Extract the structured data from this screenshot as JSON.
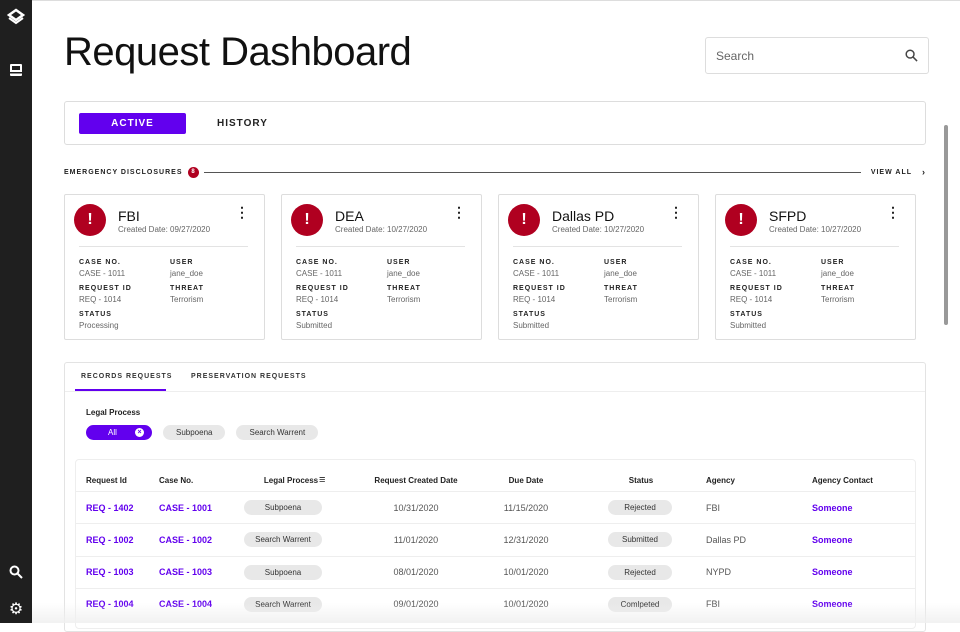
{
  "page": {
    "title": "Request Dashboard",
    "accent": "#6200ee",
    "alert_color": "#b00020"
  },
  "search": {
    "placeholder": "Search"
  },
  "tabs": {
    "active": "ACTIVE",
    "history": "HISTORY"
  },
  "emergency": {
    "label": "EMERGENCY DISCLOSURES",
    "count": "8",
    "view_all": "VIEW ALL"
  },
  "cards": [
    {
      "name": "FBI",
      "date": "Created Date: 09/27/2020",
      "case": "CASE - 1011",
      "user": "jane_doe",
      "req": "REQ -  1014",
      "threat": "Terrorism",
      "status": "Processing"
    },
    {
      "name": "DEA",
      "date": "Created Date: 10/27/2020",
      "case": "CASE - 1011",
      "user": "jane_doe",
      "req": "REQ -  1014",
      "threat": "Terrorism",
      "status": "Submitted"
    },
    {
      "name": "Dallas PD",
      "date": "Created Date: 10/27/2020",
      "case": "CASE - 1011",
      "user": "jane_doe",
      "req": "REQ -  1014",
      "threat": "Terrorism",
      "status": "Submitted"
    },
    {
      "name": "SFPD",
      "date": "Created Date: 10/27/2020",
      "case": "CASE - 1011",
      "user": "jane_doe",
      "req": "REQ -  1014",
      "threat": "Terrorism",
      "status": "Submitted"
    }
  ],
  "card_labels": {
    "case": "CASE NO.",
    "user": "USER",
    "req": "REQUEST ID",
    "threat": "THREAT",
    "status": "STATUS"
  },
  "subtabs": {
    "records": "RECORDS REQUESTS",
    "preservation": "PRESERVATION REQUESTS"
  },
  "filter": {
    "label": "Legal Process",
    "chips": [
      "All",
      "Subpoena",
      "Search Warrent"
    ]
  },
  "table": {
    "headers": [
      "Request Id",
      "Case No.",
      "Legal Process",
      "Request Created Date",
      "Due Date",
      "Status",
      "Agency",
      "Agency Contact"
    ],
    "rows": [
      [
        "REQ - 1402",
        "CASE - 1001",
        "Subpoena",
        "10/31/2020",
        "11/15/2020",
        "Rejected",
        "FBI",
        "Someone"
      ],
      [
        "REQ - 1002",
        "CASE - 1002",
        "Search Warrent",
        "11/01/2020",
        "12/31/2020",
        "Submitted",
        "Dallas PD",
        "Someone"
      ],
      [
        "REQ - 1003",
        "CASE - 1003",
        "Subpoena",
        "08/01/2020",
        "10/01/2020",
        "Rejected",
        "NYPD",
        "Someone"
      ],
      [
        "REQ - 1004",
        "CASE - 1004",
        "Search Warrent",
        "09/01/2020",
        "10/01/2020",
        "Comlpeted",
        "FBI",
        "Someone"
      ]
    ]
  }
}
